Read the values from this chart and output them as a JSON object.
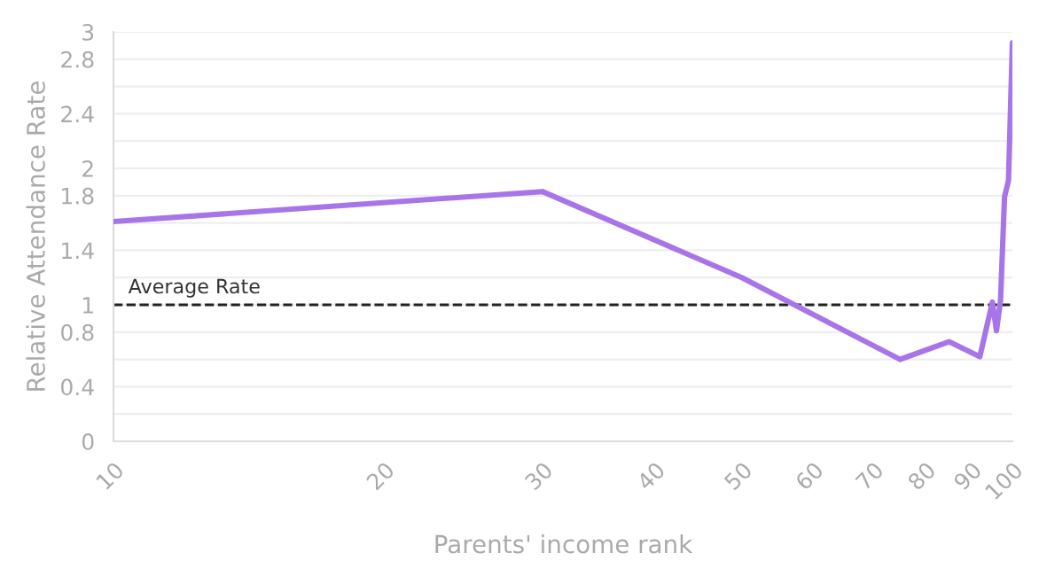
{
  "chart_data": {
    "type": "line",
    "xlabel": "Parents' income rank",
    "ylabel": "Relative Attendance Rate",
    "log": "x",
    "x": [
      10,
      30,
      50,
      75,
      85,
      92,
      95,
      96,
      97,
      98,
      99,
      100
    ],
    "series": [
      {
        "color": "#a875e8",
        "values": [
          1.61,
          1.83,
          1.2,
          0.6,
          0.73,
          0.62,
          1.02,
          0.81,
          1.03,
          1.79,
          1.91,
          2.92
        ]
      }
    ],
    "xlim": [
      10,
      100
    ],
    "xticks": [
      10,
      20,
      30,
      40,
      50,
      60,
      70,
      80,
      90,
      100
    ],
    "ylim": [
      0,
      3
    ],
    "yticks": [
      0,
      {
        "value": 0.2,
        "label": null
      },
      0.4,
      {
        "value": 0.6,
        "label": null
      },
      0.8,
      1,
      {
        "value": 1.2,
        "label": null
      },
      1.4,
      {
        "value": 1.6,
        "label": null
      },
      1.8,
      2,
      {
        "value": 2.2,
        "label": null
      },
      2.4,
      {
        "value": 2.6,
        "label": null
      },
      2.8,
      3
    ],
    "grid": "y",
    "marker": "none",
    "line_style": "solid",
    "ref_lines": [
      {
        "axis": "y",
        "value": 1,
        "label": "Average Rate",
        "color": "#222222",
        "line_style": "dashed"
      }
    ]
  }
}
